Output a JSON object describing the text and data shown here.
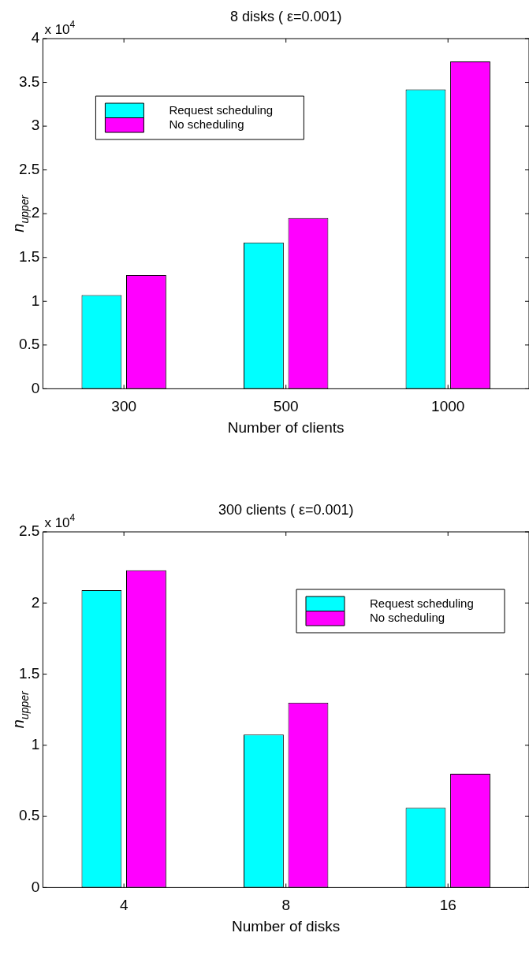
{
  "chart_data": [
    {
      "type": "bar",
      "title": "8 disks ( ε=0.001)",
      "xlabel": "Number of clients",
      "ylabel": "n$_{upper}$",
      "annotations": [
        "x 10$^{4}$"
      ],
      "categories": [
        "300",
        "500",
        "1000"
      ],
      "series": [
        {
          "name": "Request scheduling",
          "color": "#00ffff",
          "values": [
            1.07,
            1.67,
            3.42
          ]
        },
        {
          "name": "No scheduling",
          "color": "#ff00ff",
          "values": [
            1.3,
            1.95,
            3.74
          ]
        }
      ],
      "ylim": [
        0,
        4
      ],
      "yticks": [
        0,
        0.5,
        1,
        1.5,
        2,
        2.5,
        3,
        3.5,
        4
      ],
      "grid": false,
      "legend": "top left"
    },
    {
      "type": "bar",
      "title": "300 clients ( ε=0.001)",
      "xlabel": "Number of disks",
      "ylabel": "n$_{upper}$",
      "annotations": [
        "x 10$^{4}$"
      ],
      "categories": [
        "4",
        "8",
        "16"
      ],
      "series": [
        {
          "name": "Request scheduling",
          "color": "#00ffff",
          "values": [
            2.09,
            1.075,
            0.56
          ]
        },
        {
          "name": "No scheduling",
          "color": "#ff00ff",
          "values": [
            2.23,
            1.3,
            0.8
          ]
        }
      ],
      "ylim": [
        0,
        2.5
      ],
      "yticks": [
        0,
        0.5,
        1,
        1.5,
        2,
        2.5
      ],
      "grid": false,
      "legend": "top right"
    }
  ]
}
